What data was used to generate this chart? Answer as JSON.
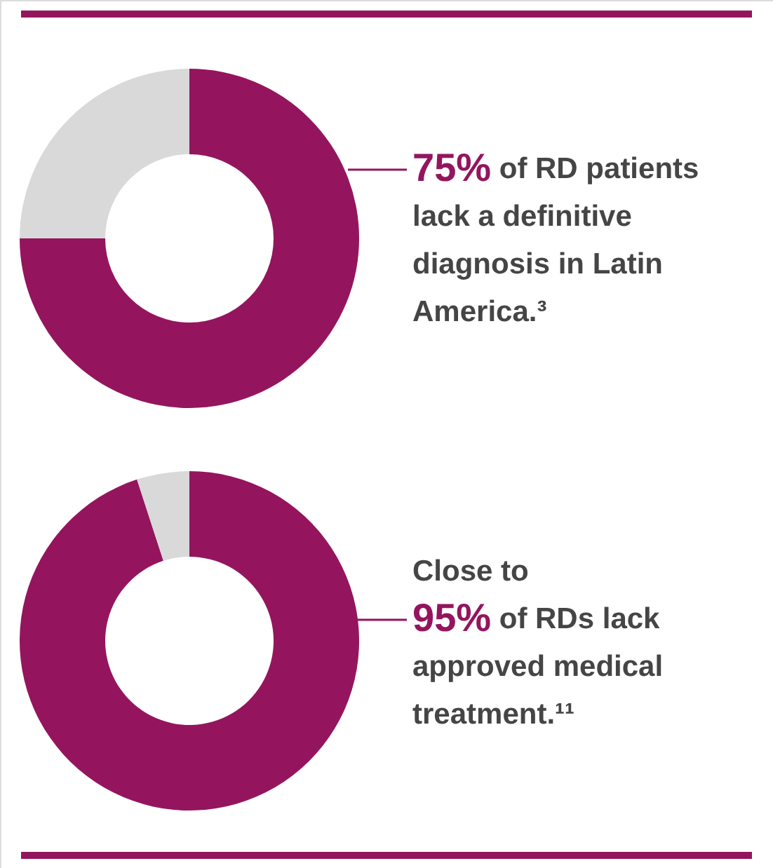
{
  "chart_data": [
    {
      "type": "donut",
      "categories": [
        null,
        null
      ],
      "values": [
        75,
        25
      ],
      "colors": [
        "#94155e",
        "#d9d9d9"
      ],
      "annotations": [
        "75% of RD patients lack a definitive diagnosis in Latin America.³"
      ]
    },
    {
      "type": "donut",
      "categories": [
        null,
        null
      ],
      "values": [
        95,
        5
      ],
      "colors": [
        "#94155e",
        "#d9d9d9"
      ],
      "annotations": [
        "Close to 95% of RDs lack approved medical treatment.¹¹"
      ]
    }
  ]
}
